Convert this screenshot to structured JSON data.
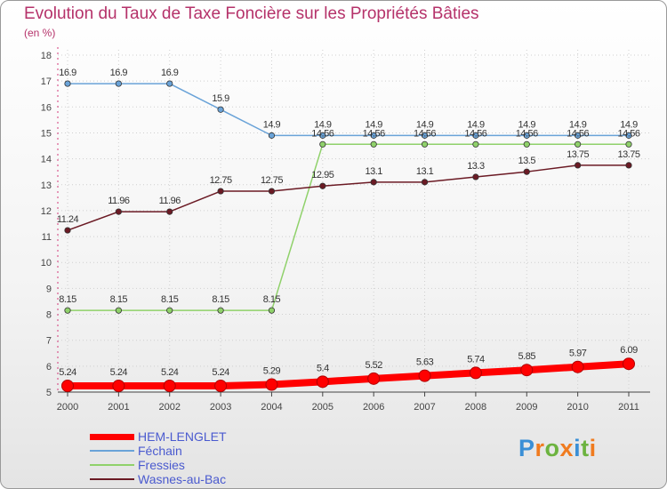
{
  "header": {
    "title": "Evolution du Taux de Taxe Foncière sur les Propriétés Bâties",
    "unit": "(en %)"
  },
  "logo": {
    "letters": [
      "P",
      "r",
      "o",
      "x",
      "i",
      "t",
      "i"
    ],
    "colors": [
      "#3a8fd6",
      "#f07b1f",
      "#6cb33f",
      "#f07b1f",
      "#3a8fd6",
      "#6cb33f",
      "#f07b1f"
    ]
  },
  "chart_data": {
    "type": "line",
    "title": "Evolution du Taux de Taxe Foncière sur les Propriétés Bâties",
    "ylabel": "(en %)",
    "xlabel": "",
    "x": [
      "2000",
      "2001",
      "2002",
      "2003",
      "2004",
      "2005",
      "2006",
      "2007",
      "2008",
      "2009",
      "2010",
      "2011"
    ],
    "ylim": [
      5,
      18
    ],
    "yticks": [
      "5",
      "6",
      "7",
      "8",
      "9",
      "10",
      "11",
      "12",
      "13",
      "14",
      "15",
      "16",
      "17",
      "18"
    ],
    "grid": true,
    "legend_position": "bottom-left",
    "series": [
      {
        "name": "HEM-LENGLET",
        "color": "#ff0000",
        "values": [
          5.24,
          5.24,
          5.24,
          5.24,
          5.29,
          5.4,
          5.52,
          5.63,
          5.74,
          5.85,
          5.97,
          6.09
        ],
        "labels": [
          "5.24",
          "5.24",
          "5.24",
          "5.24",
          "5.29",
          "5.4",
          "5.52",
          "5.63",
          "5.74",
          "5.85",
          "5.97",
          "6.09"
        ]
      },
      {
        "name": "Féchain",
        "color": "#6aa3d8",
        "values": [
          16.9,
          16.9,
          16.9,
          15.9,
          14.9,
          14.9,
          14.9,
          14.9,
          14.9,
          14.9,
          14.9,
          14.9
        ],
        "labels": [
          "16.9",
          "16.9",
          "16.9",
          "15.9",
          "14.9",
          "14.9",
          "14.9",
          "14.9",
          "14.9",
          "14.9",
          "14.9",
          "14.9"
        ]
      },
      {
        "name": "Fressies",
        "color": "#8fd16a",
        "values": [
          8.15,
          8.15,
          8.15,
          8.15,
          8.15,
          14.56,
          14.56,
          14.56,
          14.56,
          14.56,
          14.56,
          14.56
        ],
        "labels": [
          "8.15",
          "8.15",
          "8.15",
          "8.15",
          "8.15",
          "14.56",
          "14.56",
          "14.56",
          "14.56",
          "14.56",
          "14.56",
          "14.56"
        ]
      },
      {
        "name": "Wasnes-au-Bac",
        "color": "#6b1a24",
        "values": [
          11.24,
          11.96,
          11.96,
          12.75,
          12.75,
          12.95,
          13.1,
          13.1,
          13.3,
          13.5,
          13.75,
          13.75
        ],
        "labels": [
          "11.24",
          "11.96",
          "11.96",
          "12.75",
          "12.75",
          "12.95",
          "13.1",
          "13.1",
          "13.3",
          "13.5",
          "13.75",
          "13.75"
        ]
      }
    ]
  }
}
